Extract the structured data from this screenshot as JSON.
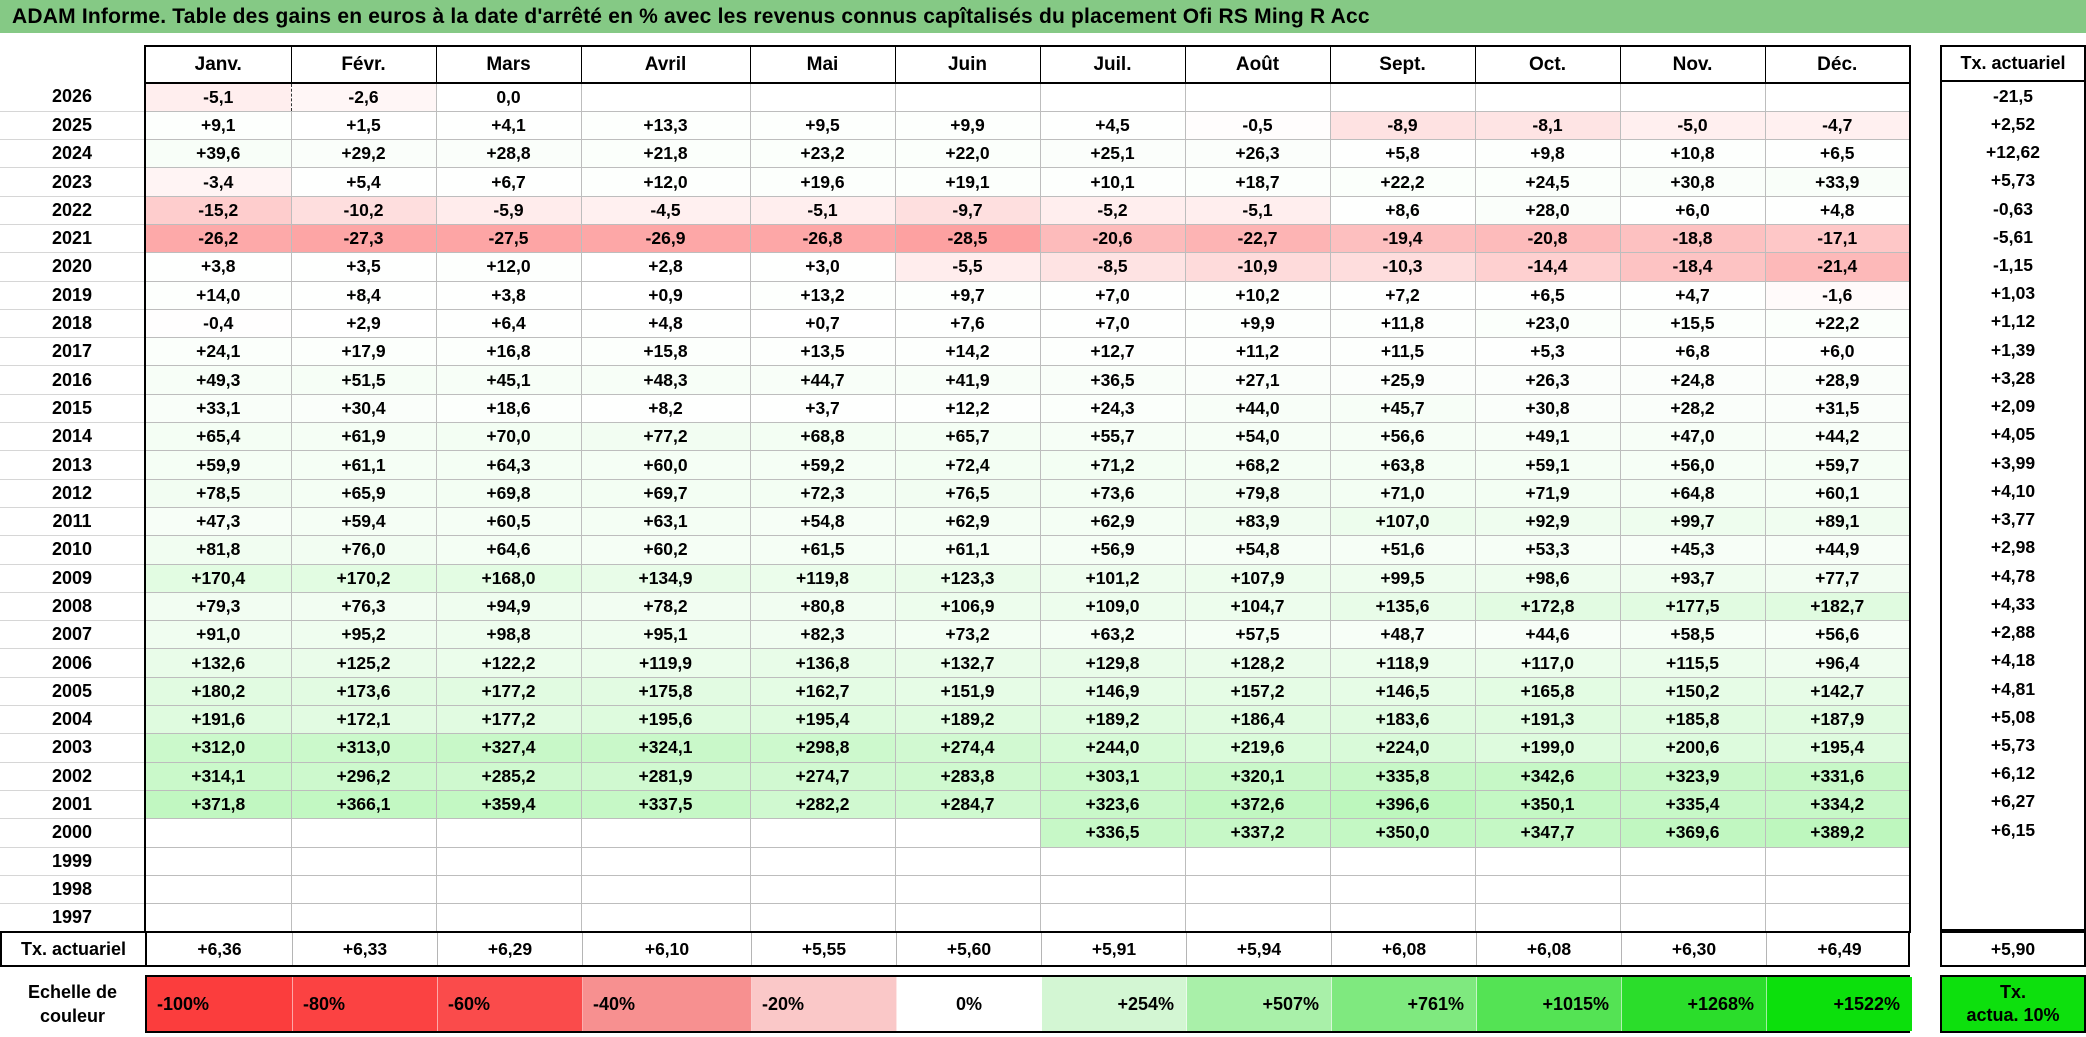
{
  "title": "ADAM Informe. Table des gains en euros à la date d'arrêté en % avec les revenus connus capîtalisés du placement Ofi RS Ming R Acc",
  "months": [
    "Janv.",
    "Févr.",
    "Mars",
    "Avril",
    "Mai",
    "Juin",
    "Juil.",
    "Août",
    "Sept.",
    "Oct.",
    "Nov.",
    "Déc."
  ],
  "right_column": {
    "header": "Tx. actuariel"
  },
  "rows": [
    {
      "year": "2026",
      "values": [
        "-5,1",
        "-2,6",
        "0,0",
        "",
        "",
        "",
        "",
        "",
        "",
        "",
        "",
        ""
      ],
      "tx": "-21,5"
    },
    {
      "year": "2025",
      "values": [
        "+9,1",
        "+1,5",
        "+4,1",
        "+13,3",
        "+9,5",
        "+9,9",
        "+4,5",
        "-0,5",
        "-8,9",
        "-8,1",
        "-5,0",
        "-4,7"
      ],
      "tx": "+2,52"
    },
    {
      "year": "2024",
      "values": [
        "+39,6",
        "+29,2",
        "+28,8",
        "+21,8",
        "+23,2",
        "+22,0",
        "+25,1",
        "+26,3",
        "+5,8",
        "+9,8",
        "+10,8",
        "+6,5"
      ],
      "tx": "+12,62"
    },
    {
      "year": "2023",
      "values": [
        "-3,4",
        "+5,4",
        "+6,7",
        "+12,0",
        "+19,6",
        "+19,1",
        "+10,1",
        "+18,7",
        "+22,2",
        "+24,5",
        "+30,8",
        "+33,9"
      ],
      "tx": "+5,73"
    },
    {
      "year": "2022",
      "values": [
        "-15,2",
        "-10,2",
        "-5,9",
        "-4,5",
        "-5,1",
        "-9,7",
        "-5,2",
        "-5,1",
        "+8,6",
        "+28,0",
        "+6,0",
        "+4,8"
      ],
      "tx": "-0,63"
    },
    {
      "year": "2021",
      "values": [
        "-26,2",
        "-27,3",
        "-27,5",
        "-26,9",
        "-26,8",
        "-28,5",
        "-20,6",
        "-22,7",
        "-19,4",
        "-20,8",
        "-18,8",
        "-17,1"
      ],
      "tx": "-5,61"
    },
    {
      "year": "2020",
      "values": [
        "+3,8",
        "+3,5",
        "+12,0",
        "+2,8",
        "+3,0",
        "-5,5",
        "-8,5",
        "-10,9",
        "-10,3",
        "-14,4",
        "-18,4",
        "-21,4"
      ],
      "tx": "-1,15"
    },
    {
      "year": "2019",
      "values": [
        "+14,0",
        "+8,4",
        "+3,8",
        "+0,9",
        "+13,2",
        "+9,7",
        "+7,0",
        "+10,2",
        "+7,2",
        "+6,5",
        "+4,7",
        "-1,6"
      ],
      "tx": "+1,03"
    },
    {
      "year": "2018",
      "values": [
        "-0,4",
        "+2,9",
        "+6,4",
        "+4,8",
        "+0,7",
        "+7,6",
        "+7,0",
        "+9,9",
        "+11,8",
        "+23,0",
        "+15,5",
        "+22,2"
      ],
      "tx": "+1,12"
    },
    {
      "year": "2017",
      "values": [
        "+24,1",
        "+17,9",
        "+16,8",
        "+15,8",
        "+13,5",
        "+14,2",
        "+12,7",
        "+11,2",
        "+11,5",
        "+5,3",
        "+6,8",
        "+6,0"
      ],
      "tx": "+1,39"
    },
    {
      "year": "2016",
      "values": [
        "+49,3",
        "+51,5",
        "+45,1",
        "+48,3",
        "+44,7",
        "+41,9",
        "+36,5",
        "+27,1",
        "+25,9",
        "+26,3",
        "+24,8",
        "+28,9"
      ],
      "tx": "+3,28"
    },
    {
      "year": "2015",
      "values": [
        "+33,1",
        "+30,4",
        "+18,6",
        "+8,2",
        "+3,7",
        "+12,2",
        "+24,3",
        "+44,0",
        "+45,7",
        "+30,8",
        "+28,2",
        "+31,5"
      ],
      "tx": "+2,09"
    },
    {
      "year": "2014",
      "values": [
        "+65,4",
        "+61,9",
        "+70,0",
        "+77,2",
        "+68,8",
        "+65,7",
        "+55,7",
        "+54,0",
        "+56,6",
        "+49,1",
        "+47,0",
        "+44,2"
      ],
      "tx": "+4,05"
    },
    {
      "year": "2013",
      "values": [
        "+59,9",
        "+61,1",
        "+64,3",
        "+60,0",
        "+59,2",
        "+72,4",
        "+71,2",
        "+68,2",
        "+63,8",
        "+59,1",
        "+56,0",
        "+59,7"
      ],
      "tx": "+3,99"
    },
    {
      "year": "2012",
      "values": [
        "+78,5",
        "+65,9",
        "+69,8",
        "+69,7",
        "+72,3",
        "+76,5",
        "+73,6",
        "+79,8",
        "+71,0",
        "+71,9",
        "+64,8",
        "+60,1"
      ],
      "tx": "+4,10"
    },
    {
      "year": "2011",
      "values": [
        "+47,3",
        "+59,4",
        "+60,5",
        "+63,1",
        "+54,8",
        "+62,9",
        "+62,9",
        "+83,9",
        "+107,0",
        "+92,9",
        "+99,7",
        "+89,1"
      ],
      "tx": "+3,77"
    },
    {
      "year": "2010",
      "values": [
        "+81,8",
        "+76,0",
        "+64,6",
        "+60,2",
        "+61,5",
        "+61,1",
        "+56,9",
        "+54,8",
        "+51,6",
        "+53,3",
        "+45,3",
        "+44,9"
      ],
      "tx": "+2,98"
    },
    {
      "year": "2009",
      "values": [
        "+170,4",
        "+170,2",
        "+168,0",
        "+134,9",
        "+119,8",
        "+123,3",
        "+101,2",
        "+107,9",
        "+99,5",
        "+98,6",
        "+93,7",
        "+77,7"
      ],
      "tx": "+4,78"
    },
    {
      "year": "2008",
      "values": [
        "+79,3",
        "+76,3",
        "+94,9",
        "+78,2",
        "+80,8",
        "+106,9",
        "+109,0",
        "+104,7",
        "+135,6",
        "+172,8",
        "+177,5",
        "+182,7"
      ],
      "tx": "+4,33"
    },
    {
      "year": "2007",
      "values": [
        "+91,0",
        "+95,2",
        "+98,8",
        "+95,1",
        "+82,3",
        "+73,2",
        "+63,2",
        "+57,5",
        "+48,7",
        "+44,6",
        "+58,5",
        "+56,6"
      ],
      "tx": "+2,88"
    },
    {
      "year": "2006",
      "values": [
        "+132,6",
        "+125,2",
        "+122,2",
        "+119,9",
        "+136,8",
        "+132,7",
        "+129,8",
        "+128,2",
        "+118,9",
        "+117,0",
        "+115,5",
        "+96,4"
      ],
      "tx": "+4,18"
    },
    {
      "year": "2005",
      "values": [
        "+180,2",
        "+173,6",
        "+177,2",
        "+175,8",
        "+162,7",
        "+151,9",
        "+146,9",
        "+157,2",
        "+146,5",
        "+165,8",
        "+150,2",
        "+142,7"
      ],
      "tx": "+4,81"
    },
    {
      "year": "2004",
      "values": [
        "+191,6",
        "+172,1",
        "+177,2",
        "+195,6",
        "+195,4",
        "+189,2",
        "+189,2",
        "+186,4",
        "+183,6",
        "+191,3",
        "+185,8",
        "+187,9"
      ],
      "tx": "+5,08"
    },
    {
      "year": "2003",
      "values": [
        "+312,0",
        "+313,0",
        "+327,4",
        "+324,1",
        "+298,8",
        "+274,4",
        "+244,0",
        "+219,6",
        "+224,0",
        "+199,0",
        "+200,6",
        "+195,4"
      ],
      "tx": "+5,73"
    },
    {
      "year": "2002",
      "values": [
        "+314,1",
        "+296,2",
        "+285,2",
        "+281,9",
        "+274,7",
        "+283,8",
        "+303,1",
        "+320,1",
        "+335,8",
        "+342,6",
        "+323,9",
        "+331,6"
      ],
      "tx": "+6,12"
    },
    {
      "year": "2001",
      "values": [
        "+371,8",
        "+366,1",
        "+359,4",
        "+337,5",
        "+282,2",
        "+284,7",
        "+323,6",
        "+372,6",
        "+396,6",
        "+350,1",
        "+335,4",
        "+334,2"
      ],
      "tx": "+6,27"
    },
    {
      "year": "2000",
      "values": [
        "",
        "",
        "",
        "",
        "",
        "",
        "+336,5",
        "+337,2",
        "+350,0",
        "+347,7",
        "+369,6",
        "+389,2"
      ],
      "tx": "+6,15"
    },
    {
      "year": "1999",
      "values": [
        "",
        "",
        "",
        "",
        "",
        "",
        "",
        "",
        "",
        "",
        "",
        ""
      ],
      "tx": ""
    },
    {
      "year": "1998",
      "values": [
        "",
        "",
        "",
        "",
        "",
        "",
        "",
        "",
        "",
        "",
        "",
        ""
      ],
      "tx": ""
    },
    {
      "year": "1997",
      "values": [
        "",
        "",
        "",
        "",
        "",
        "",
        "",
        "",
        "",
        "",
        "",
        ""
      ],
      "tx": ""
    }
  ],
  "tx_row": {
    "label": "Tx. actuariel",
    "values": [
      "+6,36",
      "+6,33",
      "+6,29",
      "+6,10",
      "+5,55",
      "+5,60",
      "+5,91",
      "+5,94",
      "+6,08",
      "+6,08",
      "+6,30",
      "+6,49"
    ],
    "tx": "+5,90"
  },
  "legend": {
    "label_line1": "Echelle de",
    "label_line2": "couleur",
    "cells": [
      {
        "label": "-100%",
        "color": "#fb3d3d"
      },
      {
        "label": "-80%",
        "color": "#fb4242"
      },
      {
        "label": "-60%",
        "color": "#fa4b4b"
      },
      {
        "label": "-40%",
        "color": "#f79090"
      },
      {
        "label": "-20%",
        "color": "#fac8c8"
      },
      {
        "label": "0%",
        "color": "#ffffff"
      },
      {
        "label": "+254%",
        "color": "#d3f6d3"
      },
      {
        "label": "+507%",
        "color": "#a9f0a9"
      },
      {
        "label": "+761%",
        "color": "#7fe97f"
      },
      {
        "label": "+1015%",
        "color": "#54e354"
      },
      {
        "label": "+1268%",
        "color": "#2bdd2b"
      },
      {
        "label": "+1522%",
        "color": "#0ce00c"
      }
    ],
    "right_line1": "Tx.",
    "right_line2": "actua. 10%",
    "right_color": "#0de00d"
  },
  "scale": {
    "negative_full_color": "#fa3a3a",
    "negative_full_at": -60,
    "positive_full_color": "#00e000",
    "positive_full_at": 1522
  },
  "dashed_cell": {
    "row_index": 0,
    "col_index": 0
  },
  "title_bar_color": "#85c985"
}
